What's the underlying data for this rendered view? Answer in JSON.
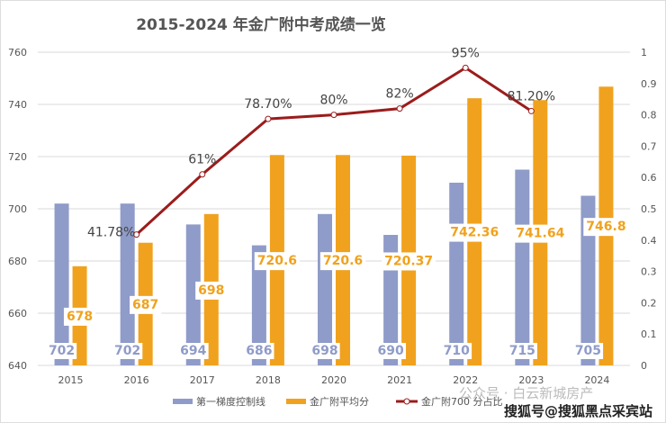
{
  "chart_data": {
    "type": "bar",
    "title": "2015-2024 年金广附中考成绩一览",
    "categories": [
      "2015",
      "2016",
      "2017",
      "2018",
      "2020",
      "2021",
      "2022",
      "2023",
      "2024"
    ],
    "ylim": [
      640,
      760
    ],
    "yticks": [
      640,
      660,
      680,
      700,
      720,
      740,
      760
    ],
    "y2lim": [
      0,
      1
    ],
    "y2ticks": [
      "0",
      "0.1",
      "0.2",
      "0.3",
      "0.4",
      "0.5",
      "0.6",
      "0.7",
      "0.8",
      "0.9",
      "1"
    ],
    "grid": true,
    "legend": "bottom",
    "series": [
      {
        "name": "第一梯度控制线",
        "type": "bar",
        "axis": "left",
        "color": "#8f9bc8",
        "values": [
          702,
          702,
          694,
          686,
          698,
          690,
          710,
          715,
          705
        ],
        "labels": [
          "702",
          "702",
          "694",
          "686",
          "698",
          "690",
          "710",
          "715",
          "705"
        ]
      },
      {
        "name": "金广附平均分",
        "type": "bar",
        "axis": "left",
        "color": "#f0a21e",
        "values": [
          678,
          687,
          698,
          720.6,
          720.6,
          720.37,
          742.36,
          741.64,
          746.8
        ],
        "labels": [
          "678",
          "687",
          "698",
          "720.6",
          "720.6",
          "720.37",
          "742.36",
          "741.64",
          "746.8"
        ]
      },
      {
        "name": "金广附700 分占比",
        "type": "line",
        "axis": "right",
        "color": "#9b1c1c",
        "values": [
          null,
          0.4178,
          0.61,
          0.787,
          0.8,
          0.82,
          0.95,
          0.812,
          null
        ],
        "labels": [
          "",
          "41.78%",
          "61%",
          "78.70%",
          "80%",
          "82%",
          "95%",
          "81.20%",
          ""
        ]
      }
    ]
  },
  "watermark": {
    "line1": "公众号 · 白云新城房产",
    "line2": "搜狐号@搜狐黑点采宾站"
  }
}
